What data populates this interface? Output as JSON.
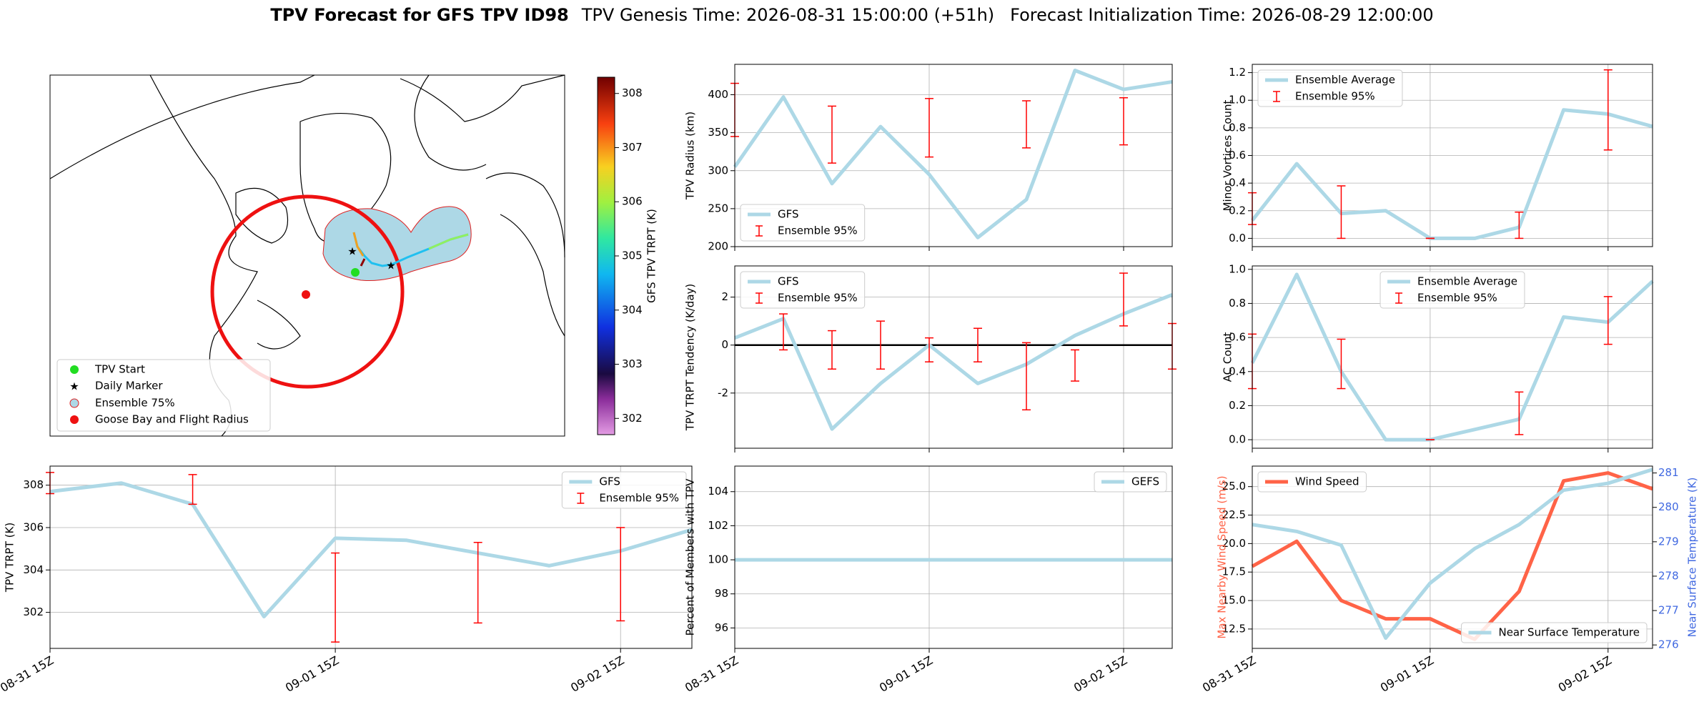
{
  "title": "TPV Forecast for GFS TPV ID98",
  "genesis": "TPV Genesis Time: 2026-08-31 15:00:00 (+51h)",
  "init": "Forecast Initialization Time: 2026-08-29 12:00:00",
  "chart_data": [
    {
      "type": "map",
      "legend": [
        "TPV Start",
        "Daily Marker",
        "Ensemble 75%",
        "Goose Bay and Flight Radius"
      ],
      "colorbar_label": "GFS TPV TRPT (K)",
      "clim": [
        301.7,
        308.3
      ],
      "cticks": [
        302,
        303,
        304,
        305,
        306,
        307,
        308
      ]
    },
    {
      "type": "line",
      "ylabel": "TPV Radius (km)",
      "x": [
        0,
        6,
        12,
        18,
        24,
        30,
        36,
        42,
        48,
        54
      ],
      "xlim": [
        0,
        54
      ],
      "xticks": [
        {
          "value": 0,
          "label": "08-31 15Z"
        },
        {
          "value": 24,
          "label": "09-01 15Z"
        },
        {
          "value": 48,
          "label": "09-02 15Z"
        }
      ],
      "ylim": [
        200,
        440
      ],
      "yticks": [
        200,
        250,
        300,
        350,
        400
      ],
      "grid": true,
      "legend": "lower left",
      "series": [
        {
          "name": "GFS",
          "color": "#add8e6",
          "values": [
            305,
            397,
            283,
            358,
            295,
            212,
            262,
            432,
            407,
            417
          ]
        }
      ],
      "errorbars": {
        "name": "Ensemble 95%",
        "color": "#ff0000",
        "low": [
          345,
          null,
          310,
          null,
          318,
          null,
          330,
          null,
          334,
          null
        ],
        "high": [
          415,
          null,
          385,
          null,
          395,
          null,
          392,
          null,
          396,
          null
        ]
      }
    },
    {
      "type": "line",
      "ylabel": "Minor Vortices Count",
      "x": [
        0,
        6,
        12,
        18,
        24,
        30,
        36,
        42,
        48,
        54
      ],
      "xlim": [
        0,
        54
      ],
      "xticks": [
        {
          "value": 0,
          "label": "08-31 15Z"
        },
        {
          "value": 24,
          "label": "09-01 15Z"
        },
        {
          "value": 48,
          "label": "09-02 15Z"
        }
      ],
      "ylim": [
        -0.06,
        1.26
      ],
      "yticks": [
        {
          "value": 0,
          "label": "0.0"
        },
        0.2,
        0.4,
        0.6,
        0.8,
        {
          "value": 1,
          "label": "1.0"
        },
        1.2
      ],
      "grid": true,
      "legend": "upper left",
      "series": [
        {
          "name": "Ensemble Average",
          "color": "#add8e6",
          "values": [
            0.13,
            0.54,
            0.18,
            0.2,
            0,
            0,
            0.08,
            0.93,
            0.9,
            0.81
          ]
        }
      ],
      "errorbars": {
        "name": "Ensemble 95%",
        "color": "#ff0000",
        "low": [
          0.1,
          null,
          0,
          null,
          0,
          null,
          0,
          null,
          0.64,
          null
        ],
        "high": [
          0.33,
          null,
          0.38,
          null,
          0,
          null,
          0.19,
          null,
          1.22,
          null
        ]
      }
    },
    {
      "type": "line",
      "ylabel": "TPV TRPT (K)",
      "x": [
        0,
        6,
        12,
        18,
        24,
        30,
        36,
        42,
        48,
        54
      ],
      "xlim": [
        0,
        54
      ],
      "xticks": [
        {
          "value": 0,
          "label": "08-31 15Z"
        },
        {
          "value": 24,
          "label": "09-01 15Z"
        },
        {
          "value": 48,
          "label": "09-02 15Z"
        }
      ],
      "ylim": [
        300.3,
        308.9
      ],
      "yticks": [
        302,
        304,
        306,
        308
      ],
      "grid": true,
      "legend": "upper right",
      "series": [
        {
          "name": "GFS",
          "color": "#add8e6",
          "values": [
            307.7,
            308.1,
            307.1,
            301.8,
            305.5,
            305.4,
            304.8,
            304.2,
            304.9,
            305.9
          ]
        }
      ],
      "errorbars": {
        "name": "Ensemble 95%",
        "color": "#ff0000",
        "low": [
          307.6,
          null,
          307.1,
          null,
          300.6,
          null,
          301.5,
          null,
          301.6,
          null
        ],
        "high": [
          308.6,
          null,
          308.5,
          null,
          304.8,
          null,
          305.3,
          null,
          306.0,
          null
        ]
      }
    },
    {
      "type": "line",
      "ylabel": "TPV TRPT Tendency (K/day)",
      "x": [
        0,
        6,
        12,
        18,
        24,
        30,
        36,
        42,
        48,
        54
      ],
      "xlim": [
        0,
        54
      ],
      "xticks": [
        {
          "value": 0,
          "label": "08-31 15Z"
        },
        {
          "value": 24,
          "label": "09-01 15Z"
        },
        {
          "value": 48,
          "label": "09-02 15Z"
        }
      ],
      "ylim": [
        -4.3,
        3.3
      ],
      "yticks": [
        -2,
        0,
        2
      ],
      "grid": true,
      "legend": "upper left",
      "hline": 0,
      "series": [
        {
          "name": "GFS",
          "color": "#add8e6",
          "values": [
            0.3,
            1.1,
            -3.5,
            -1.6,
            0,
            -1.6,
            -0.8,
            0.4,
            1.3,
            2.1
          ]
        }
      ],
      "errorbars": {
        "name": "Ensemble 95%",
        "color": "#ff0000",
        "low": [
          null,
          -0.2,
          -1.0,
          -1.0,
          -0.7,
          -0.7,
          -2.7,
          -1.5,
          0.8,
          -1.0
        ],
        "high": [
          null,
          1.3,
          0.6,
          1.0,
          0.3,
          0.7,
          0.1,
          -0.2,
          3.0,
          0.9
        ]
      }
    },
    {
      "type": "line",
      "ylabel": "AC Count",
      "x": [
        0,
        6,
        12,
        18,
        24,
        30,
        36,
        42,
        48,
        54
      ],
      "xlim": [
        0,
        54
      ],
      "xticks": [
        {
          "value": 0,
          "label": "08-31 15Z"
        },
        {
          "value": 24,
          "label": "09-01 15Z"
        },
        {
          "value": 48,
          "label": "09-02 15Z"
        }
      ],
      "ylim": [
        -0.05,
        1.02
      ],
      "yticks": [
        {
          "value": 0,
          "label": "0.0"
        },
        0.2,
        0.4,
        0.6,
        0.8,
        {
          "value": 1,
          "label": "1.0"
        }
      ],
      "grid": true,
      "legend": "upper center",
      "series": [
        {
          "name": "Ensemble Average",
          "color": "#add8e6",
          "values": [
            0.45,
            0.97,
            0.4,
            0,
            0,
            0.06,
            0.12,
            0.72,
            0.69,
            0.93
          ]
        }
      ],
      "errorbars": {
        "name": "Ensemble 95%",
        "color": "#ff0000",
        "low": [
          0.3,
          null,
          0.3,
          null,
          0,
          null,
          0.03,
          null,
          0.56,
          null
        ],
        "high": [
          0.62,
          null,
          0.59,
          null,
          0,
          null,
          0.28,
          null,
          0.84,
          null
        ]
      }
    },
    {
      "type": "line",
      "ylabel": "Percent of Members with TPV",
      "x": [
        0,
        6,
        12,
        18,
        24,
        30,
        36,
        42,
        48,
        54
      ],
      "xlim": [
        0,
        54
      ],
      "xticks": [
        {
          "value": 0,
          "label": "08-31 15Z"
        },
        {
          "value": 24,
          "label": "09-01 15Z"
        },
        {
          "value": 48,
          "label": "09-02 15Z"
        }
      ],
      "ylim": [
        94.8,
        105.5
      ],
      "yticks": [
        96,
        98,
        100,
        102,
        104
      ],
      "grid": true,
      "legend": "upper right",
      "series": [
        {
          "name": "GEFS",
          "color": "#add8e6",
          "values": [
            100,
            100,
            100,
            100,
            100,
            100,
            100,
            100,
            100,
            100
          ]
        }
      ]
    },
    {
      "type": "line",
      "ylabel": "Max Nearby Wind Speed (m/s)",
      "ylabel_color": "#ff6347",
      "y2label": "Near Surface Temperature (K)",
      "y2label_color": "#4169e1",
      "x": [
        0,
        6,
        12,
        18,
        24,
        30,
        36,
        42,
        48,
        54
      ],
      "xlim": [
        0,
        54
      ],
      "xticks": [
        {
          "value": 0,
          "label": "08-31 15Z"
        },
        {
          "value": 24,
          "label": "09-01 15Z"
        },
        {
          "value": 48,
          "label": "09-02 15Z"
        }
      ],
      "ylim": [
        10.8,
        26.8
      ],
      "yticks": [
        12.5,
        {
          "value": 15,
          "label": "15.0"
        },
        17.5,
        {
          "value": 20,
          "label": "20.0"
        },
        22.5,
        {
          "value": 25,
          "label": "25.0"
        }
      ],
      "y2lim": [
        275.9,
        281.2
      ],
      "y2ticks": [
        276,
        277,
        278,
        279,
        280,
        281
      ],
      "grid": true,
      "legend": "upper left",
      "legend2": "lower right",
      "series": [
        {
          "name": "Wind Speed",
          "color": "#ff6347",
          "values": [
            18.0,
            20.2,
            15.0,
            13.4,
            13.4,
            11.6,
            15.8,
            25.5,
            26.2,
            24.8
          ]
        },
        {
          "name": "Near Surface Temperature",
          "color": "#add8e6",
          "axis": "y2",
          "values": [
            279.5,
            279.3,
            278.9,
            276.2,
            277.8,
            278.8,
            279.5,
            280.5,
            280.7,
            281.1
          ]
        }
      ]
    }
  ]
}
